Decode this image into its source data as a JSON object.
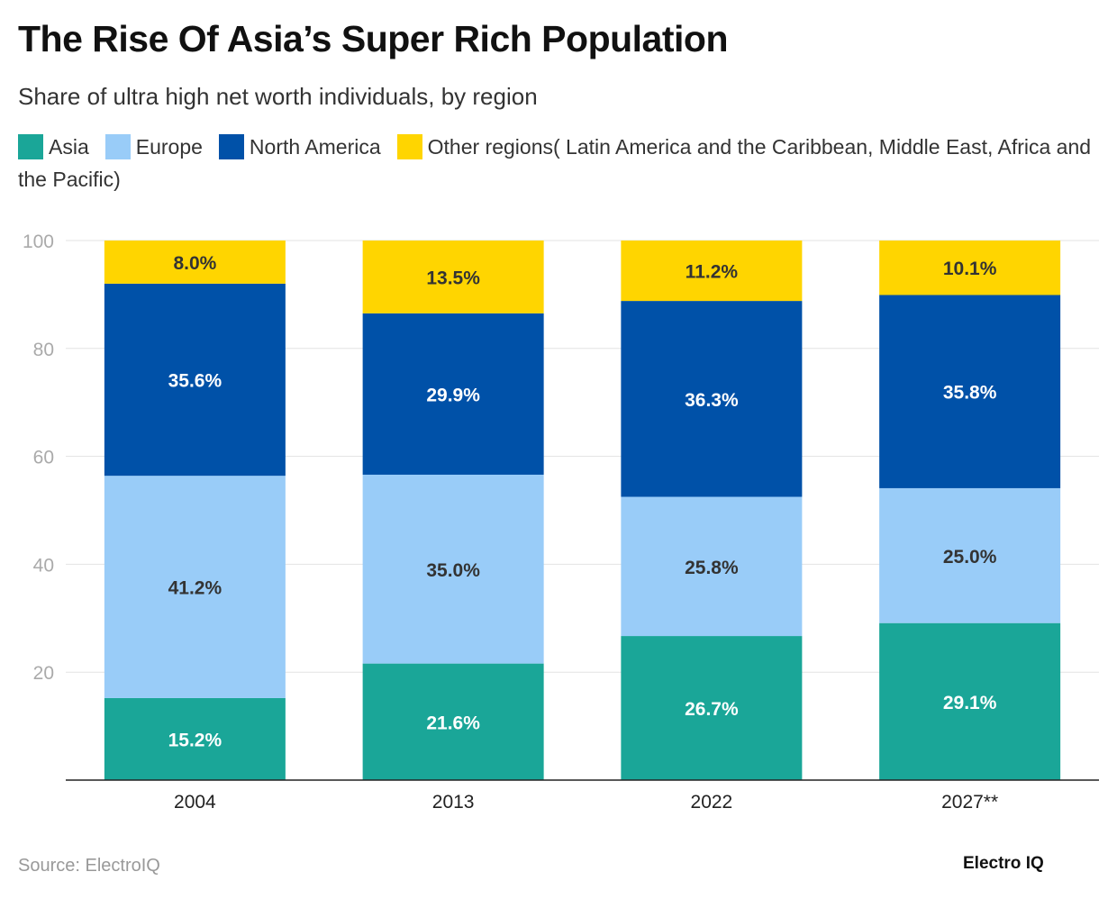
{
  "title": "The Rise Of Asia’s Super Rich Population",
  "subtitle": "Share of ultra high net worth individuals, by region",
  "source": "Source: ElectroIQ",
  "logo": "Electro IQ",
  "chart_data": {
    "type": "bar",
    "stacked": true,
    "categories": [
      "2004",
      "2013",
      "2022",
      "2027**"
    ],
    "ylim": [
      0,
      100
    ],
    "yticks": [
      20,
      40,
      60,
      80,
      100
    ],
    "grid": true,
    "legend_position": "top",
    "series": [
      {
        "name": "Asia",
        "color": "#1aa698",
        "label_color": "#ffffff",
        "values": [
          15.2,
          21.6,
          26.7,
          29.1
        ],
        "labels": [
          "15.2%",
          "21.6%",
          "26.7%",
          "29.1%"
        ]
      },
      {
        "name": "Europe",
        "color": "#99ccf8",
        "label_color": "#333333",
        "values": [
          41.2,
          35.0,
          25.8,
          25.0
        ],
        "labels": [
          "41.2%",
          "35.0%",
          "25.8%",
          "25.0%"
        ]
      },
      {
        "name": "North America",
        "color": "#0051a8",
        "label_color": "#ffffff",
        "values": [
          35.6,
          29.9,
          36.3,
          35.8
        ],
        "labels": [
          "35.6%",
          "29.9%",
          "36.3%",
          "35.8%"
        ]
      },
      {
        "name": "Other regions( Latin America and the Caribbean, Middle East, Africa and the Pacific)",
        "color": "#ffd500",
        "label_color": "#333333",
        "values": [
          8.0,
          13.5,
          11.2,
          10.1
        ],
        "labels": [
          "8.0%",
          "13.5%",
          "11.2%",
          "10.1%"
        ]
      }
    ]
  }
}
